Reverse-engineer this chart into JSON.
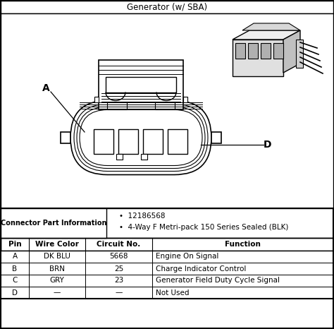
{
  "title": "Generator (w/ SBA)",
  "background_color": "#ffffff",
  "connector_part_info_label": "Connector Part Information",
  "connector_bullets": [
    "12186568",
    "4-Way F Metri-pack 150 Series Sealed (BLK)"
  ],
  "table_headers": [
    "Pin",
    "Wire Color",
    "Circuit No.",
    "Function"
  ],
  "table_rows": [
    [
      "A",
      "DK BLU",
      "5668",
      "Engine On Signal"
    ],
    [
      "B",
      "BRN",
      "25",
      "Charge Indicator Control"
    ],
    [
      "C",
      "GRY",
      "23",
      "Generator Field Duty Cycle Signal"
    ],
    [
      "D",
      "—",
      "—",
      "Not Used"
    ]
  ],
  "label_A": "A",
  "label_D": "D",
  "fig_w": 4.74,
  "fig_h": 4.66,
  "dpi": 100
}
